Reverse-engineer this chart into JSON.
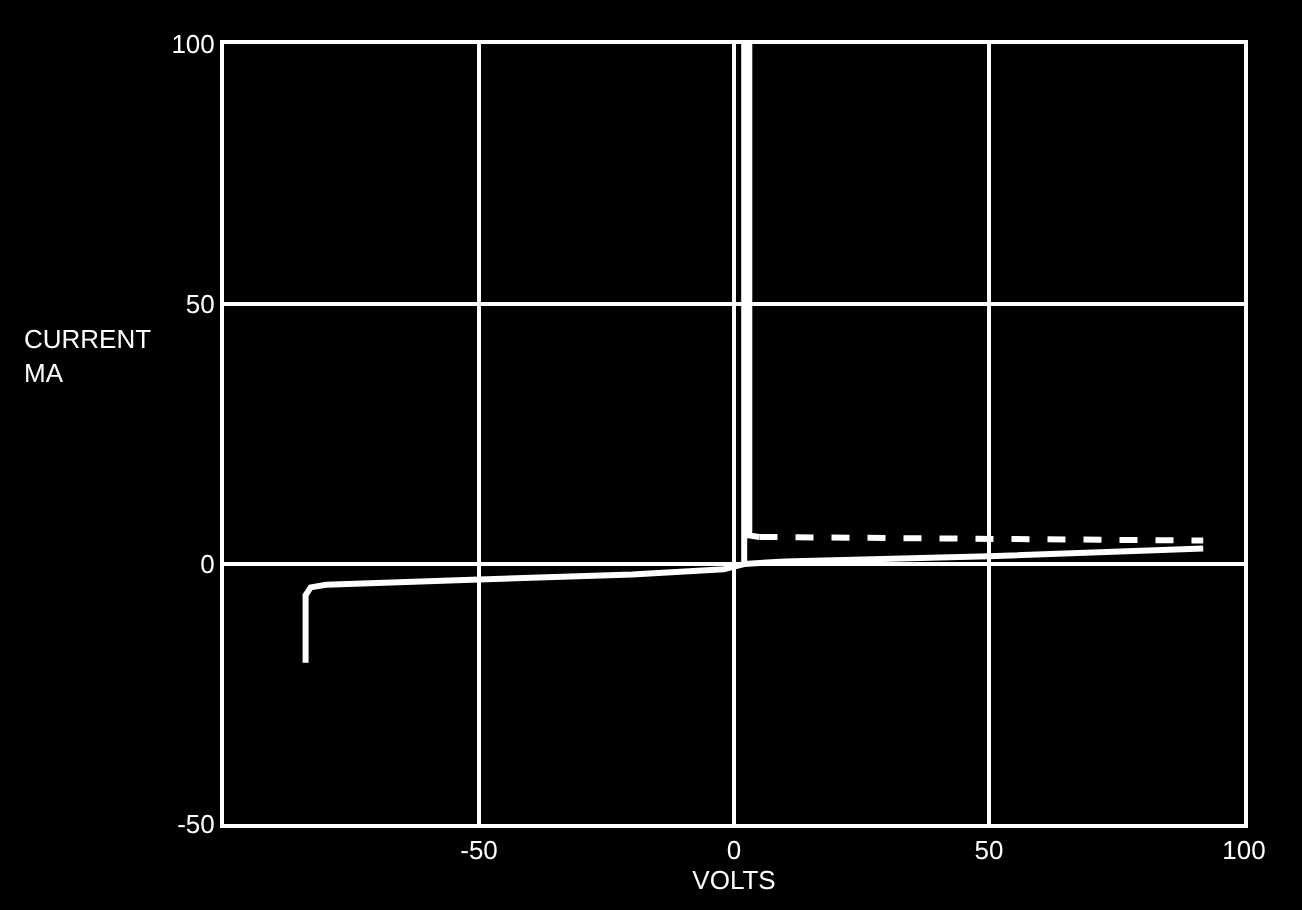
{
  "chart_data": {
    "type": "line",
    "xlabel": "VOLTS",
    "ylabel": "CURRENT\nMA",
    "xlim": [
      -100,
      100
    ],
    "ylim": [
      -50,
      100
    ],
    "xticks": [
      -50,
      0,
      50,
      100
    ],
    "yticks": [
      -50,
      0,
      50,
      100
    ],
    "grid": true,
    "series": [
      {
        "color": "#ffffff",
        "line_style": "solid",
        "x": [
          -84,
          -84,
          -83,
          -80,
          -50,
          -20,
          -2,
          0,
          2,
          10,
          50,
          92
        ],
        "values": [
          -19,
          -6,
          -4.5,
          -4,
          -3,
          -2,
          -1,
          -0.5,
          0,
          0.5,
          1.5,
          3
        ]
      },
      {
        "color": "#ffffff",
        "line_style": "solid",
        "x": [
          2,
          2,
          3,
          3,
          5
        ],
        "values": [
          0,
          100,
          100,
          5.5,
          5.2
        ]
      },
      {
        "color": "#ffffff",
        "line_style": "dashed",
        "x": [
          5,
          92
        ],
        "values": [
          5.2,
          4.5
        ]
      }
    ]
  }
}
